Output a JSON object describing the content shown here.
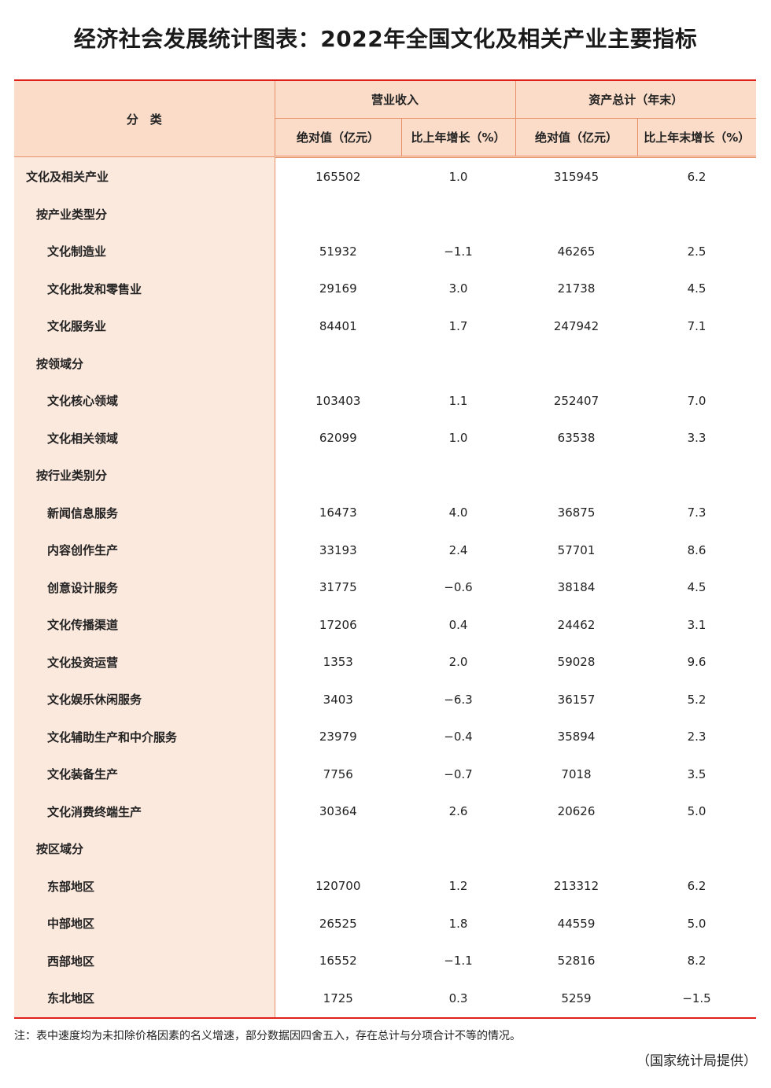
{
  "title": "经济社会发展统计图表：2022年全国文化及相关产业主要指标",
  "header": {
    "category": "分　类",
    "revenue": "营业收入",
    "assets": "资产总计（年末）",
    "rev_abs": "绝对值（亿元）",
    "rev_growth": "比上年增长（%）",
    "asset_abs": "绝对值（亿元）",
    "asset_growth": "比上年末增长（%）"
  },
  "rows": [
    {
      "level": 0,
      "name": "文化及相关产业",
      "v": [
        "165502",
        "1.0",
        "315945",
        "6.2"
      ]
    },
    {
      "level": 1,
      "name": "按产业类型分",
      "v": [
        "",
        "",
        "",
        ""
      ]
    },
    {
      "level": 2,
      "name": "文化制造业",
      "v": [
        "51932",
        "−1.1",
        "46265",
        "2.5"
      ]
    },
    {
      "level": 2,
      "name": "文化批发和零售业",
      "v": [
        "29169",
        "3.0",
        "21738",
        "4.5"
      ]
    },
    {
      "level": 2,
      "name": "文化服务业",
      "v": [
        "84401",
        "1.7",
        "247942",
        "7.1"
      ]
    },
    {
      "level": 1,
      "name": "按领域分",
      "v": [
        "",
        "",
        "",
        ""
      ]
    },
    {
      "level": 2,
      "name": "文化核心领域",
      "v": [
        "103403",
        "1.1",
        "252407",
        "7.0"
      ]
    },
    {
      "level": 2,
      "name": "文化相关领域",
      "v": [
        "62099",
        "1.0",
        "63538",
        "3.3"
      ]
    },
    {
      "level": 1,
      "name": "按行业类别分",
      "v": [
        "",
        "",
        "",
        ""
      ]
    },
    {
      "level": 2,
      "name": "新闻信息服务",
      "v": [
        "16473",
        "4.0",
        "36875",
        "7.3"
      ]
    },
    {
      "level": 2,
      "name": "内容创作生产",
      "v": [
        "33193",
        "2.4",
        "57701",
        "8.6"
      ]
    },
    {
      "level": 2,
      "name": "创意设计服务",
      "v": [
        "31775",
        "−0.6",
        "38184",
        "4.5"
      ]
    },
    {
      "level": 2,
      "name": "文化传播渠道",
      "v": [
        "17206",
        "0.4",
        "24462",
        "3.1"
      ]
    },
    {
      "level": 2,
      "name": "文化投资运营",
      "v": [
        "1353",
        "2.0",
        "59028",
        "9.6"
      ]
    },
    {
      "level": 2,
      "name": "文化娱乐休闲服务",
      "v": [
        "3403",
        "−6.3",
        "36157",
        "5.2"
      ]
    },
    {
      "level": 2,
      "name": "文化辅助生产和中介服务",
      "v": [
        "23979",
        "−0.4",
        "35894",
        "2.3"
      ]
    },
    {
      "level": 2,
      "name": "文化装备生产",
      "v": [
        "7756",
        "−0.7",
        "7018",
        "3.5"
      ]
    },
    {
      "level": 2,
      "name": "文化消费终端生产",
      "v": [
        "30364",
        "2.6",
        "20626",
        "5.0"
      ]
    },
    {
      "level": 1,
      "name": "按区域分",
      "v": [
        "",
        "",
        "",
        ""
      ]
    },
    {
      "level": 2,
      "name": "东部地区",
      "v": [
        "120700",
        "1.2",
        "213312",
        "6.2"
      ]
    },
    {
      "level": 2,
      "name": "中部地区",
      "v": [
        "26525",
        "1.8",
        "44559",
        "5.0"
      ]
    },
    {
      "level": 2,
      "name": "西部地区",
      "v": [
        "16552",
        "−1.1",
        "52816",
        "8.2"
      ]
    },
    {
      "level": 2,
      "name": "东北地区",
      "v": [
        "1725",
        "0.3",
        "5259",
        "−1.5"
      ]
    }
  ],
  "note": "注：表中速度均为未扣除价格因素的名义增速，部分数据因四舍五入，存在总计与分项合计不等的情况。",
  "source": "（国家统计局提供）",
  "colors": {
    "rule": "#e0201b",
    "header_bg": "#fadcc8",
    "category_bg": "#fce9de",
    "grid": "#e8906a"
  }
}
